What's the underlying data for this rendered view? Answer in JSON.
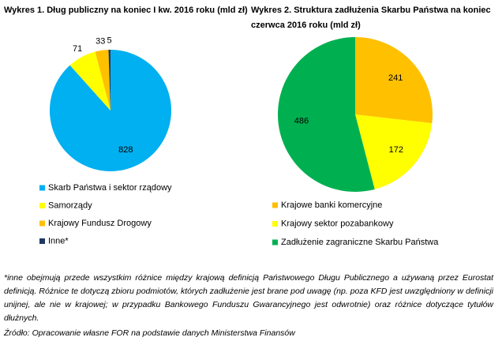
{
  "chart_data": [
    {
      "type": "pie",
      "title": "Wykres 1. Dług publiczny na koniec I kw. 2016 roku (mld zł)",
      "categories": [
        "Skarb Państwa i sektor rządowy",
        "Samorządy",
        "Krajowy Fundusz Drogowy",
        "Inne*"
      ],
      "values": [
        828,
        71,
        33,
        5
      ],
      "colors": [
        "#00b0f0",
        "#ffff00",
        "#ffc000",
        "#1f3864"
      ]
    },
    {
      "type": "pie",
      "title": "Wykres 2. Struktura zadłużenia Skarbu Państwa na koniec czerwca 2016 roku (mld zł)",
      "categories": [
        "Krajowe banki komercyjne",
        "Krajowy sektor pozabankowy",
        "Zadłużenie zagraniczne Skarbu Państwa"
      ],
      "values": [
        241,
        172,
        486
      ],
      "colors": [
        "#ffc000",
        "#ffff00",
        "#00b050"
      ]
    }
  ],
  "footnote": "*inne obejmują przede wszystkim różnice między krajową definicją Państwowego Długu Publicznego a używaną przez Eurostat definicją. Różnice te dotyczą zbioru podmiotów, których zadłużenie jest brane pod uwagę (np. poza KFD jest uwzględniony w definicji unijnej, ale nie w krajowej; w przypadku Bankowego Funduszu Gwarancyjnego jest odwrotnie) oraz różnice dotyczące tytułów dłużnych.",
  "source": "Źródło: Opracowanie własne FOR na podstawie danych Ministerstwa Finansów"
}
